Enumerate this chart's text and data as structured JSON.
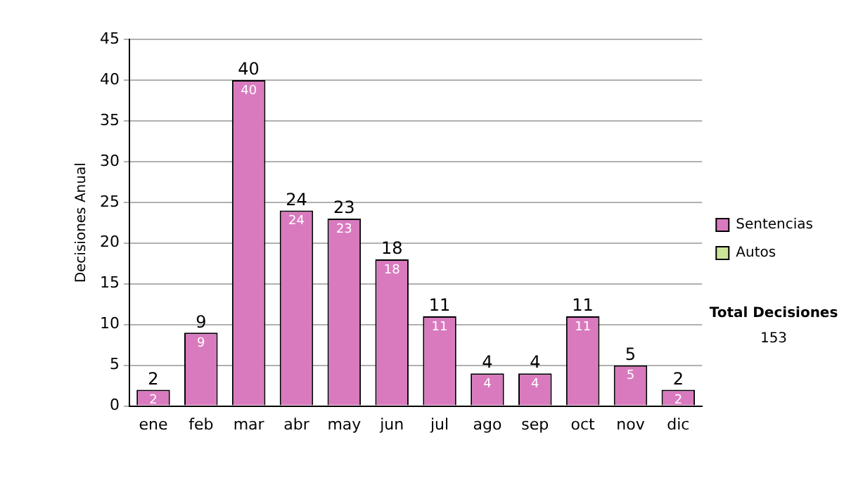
{
  "chart_data": {
    "type": "bar",
    "ylabel": "Decisiones Anual",
    "categories": [
      "ene",
      "feb",
      "mar",
      "abr",
      "may",
      "jun",
      "jul",
      "ago",
      "sep",
      "oct",
      "nov",
      "dic"
    ],
    "series": [
      {
        "name": "Sentencias",
        "color": "#d97abf",
        "values": [
          2,
          9,
          40,
          24,
          23,
          18,
          11,
          4,
          4,
          11,
          5,
          2
        ]
      },
      {
        "name": "Autos",
        "color": "#cce699",
        "values": [
          null,
          null,
          null,
          null,
          null,
          null,
          null,
          null,
          null,
          null,
          null,
          null
        ]
      }
    ],
    "stacked": true,
    "totals": [
      "2",
      "9",
      "40",
      "24",
      "23",
      "18",
      "11",
      "4",
      "4",
      "11",
      "5",
      "2"
    ],
    "data_labels": true,
    "ylim": [
      0,
      45
    ],
    "yticks": [
      0,
      5,
      10,
      15,
      20,
      25,
      30,
      35,
      40,
      45
    ],
    "grid": "y",
    "legend": "right",
    "annotations": [
      "Total Decisiones",
      "153"
    ]
  }
}
